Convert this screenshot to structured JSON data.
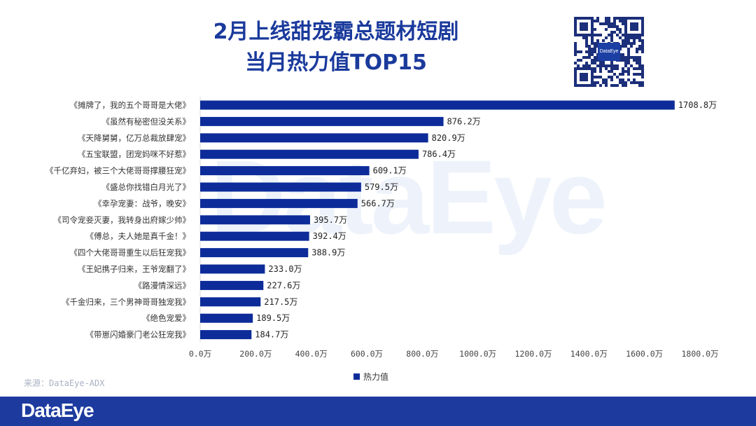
{
  "header": {
    "title_line1": "2月上线甜宠霸总题材短剧",
    "title_line2": "当月热力值TOP15",
    "qr_logo_text": "DataEye"
  },
  "watermark_text": "DataEye",
  "source_label": "来源：DataEye-ADX",
  "footer_logo": "DataEye",
  "colors": {
    "bar": "#0d2c99",
    "title": "#1a3a9c",
    "footer": "#1d3b9f"
  },
  "chart_data": {
    "type": "bar",
    "orientation": "horizontal",
    "categories": [
      "《摊牌了，我的五个哥哥是大佬》",
      "《虽然有秘密但没关系》",
      "《天降舅舅，亿万总裁放肆宠》",
      "《五宝联盟，团宠妈咪不好惹》",
      "《千亿弃妇，被三个大佬哥哥撑腰狂宠》",
      "《盛总你找错白月光了》",
      "《幸孕宠妻：战爷，晚安》",
      "《司令宠妾灭妻，我转身出府嫁少帅》",
      "《傅总，夫人她是真千金！》",
      "《四个大佬哥哥重生以后狂宠我》",
      "《王妃携子归来，王爷宠翻了》",
      "《路漫情深远》",
      "《千金归来，三个男神哥哥独宠我》",
      "《绝色宠爱》",
      "《带崽闪婚豪门老公狂宠我》"
    ],
    "series": [
      {
        "name": "热力值",
        "values": [
          1708.8,
          876.2,
          820.9,
          786.4,
          609.1,
          579.5,
          566.7,
          395.7,
          392.4,
          388.9,
          233.0,
          227.6,
          217.5,
          189.5,
          184.7
        ]
      }
    ],
    "value_labels": [
      "1708.8万",
      "876.2万",
      "820.9万",
      "786.4万",
      "609.1万",
      "579.5万",
      "566.7万",
      "395.7万",
      "392.4万",
      "388.9万",
      "233.0万",
      "227.6万",
      "217.5万",
      "189.5万",
      "184.7万"
    ],
    "xticks": [
      0,
      200,
      400,
      600,
      800,
      1000,
      1200,
      1400,
      1600,
      1800
    ],
    "xtick_labels": [
      "0.0万",
      "200.0万",
      "400.0万",
      "600.0万",
      "800.0万",
      "1000.0万",
      "1200.0万",
      "1400.0万",
      "1600.0万",
      "1800.0万"
    ],
    "xlim": [
      0,
      1800
    ],
    "legend": "bottom-center",
    "grid": false
  }
}
